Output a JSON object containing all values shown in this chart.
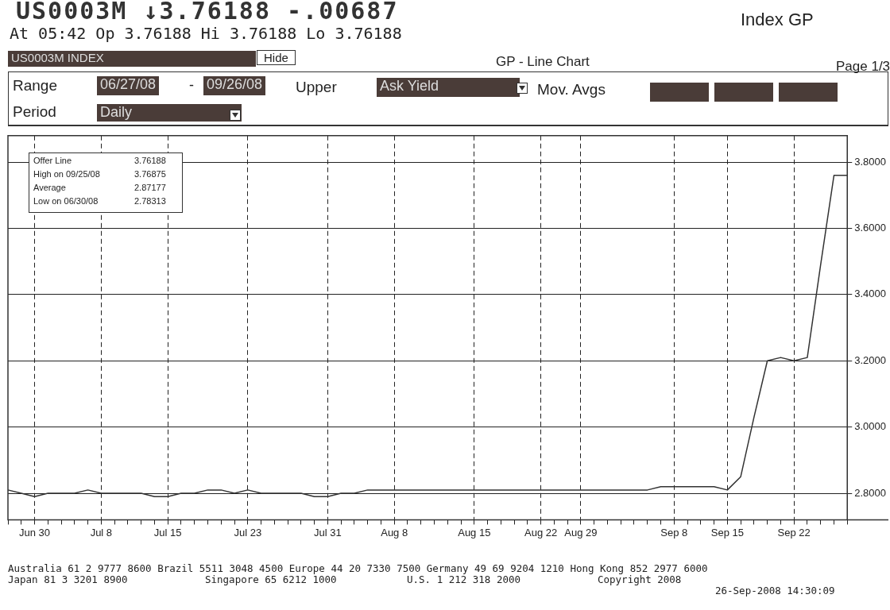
{
  "chart_data": {
    "type": "line",
    "title": "US0003M ↓3.76188 -.00687",
    "subtitle": "At 05:42 Op 3.76188 Hi 3.76188 Lo 3.76188",
    "annotations": [
      "Index GP",
      "US0003M INDEX",
      "Hide",
      "GP - Line Chart",
      "Page 1/3",
      "Range",
      "06/27/08",
      "-",
      "09/26/08",
      "Upper",
      "Ask Yield",
      "Mov. Avgs",
      "Period",
      "Daily",
      "Offer Line",
      "3.76188",
      "High on 09/25/08",
      "3.76875",
      "Average",
      "2.87177",
      "Low on 06/30/08",
      "2.78313",
      "Australia 61 2 9777 8600 Brazil 5511 3048 4500 Europe 44 20 7330 7500 Germany 49 69 9204 1210 Hong Kong 852 2977 6000",
      "Japan 81 3 3201 8900",
      "Singapore 65 6212 1000",
      "U.S. 1 212 318 2000",
      "Copyright 2008",
      "26-Sep-2008 14:30:09"
    ],
    "categories": [
      null,
      null,
      "Jun 30",
      null,
      null,
      null,
      null,
      "Jul 8",
      null,
      null,
      null,
      null,
      "Jul 15",
      null,
      null,
      null,
      null,
      null,
      "Jul 23",
      null,
      null,
      null,
      null,
      null,
      "Jul 31",
      null,
      null,
      null,
      null,
      "Aug 8",
      null,
      null,
      null,
      null,
      null,
      "Aug 15",
      null,
      null,
      null,
      null,
      "Aug 22",
      null,
      null,
      "Aug 29",
      null,
      null,
      null,
      null,
      null,
      null,
      "Sep 8",
      null,
      null,
      null,
      "Sep 15",
      null,
      null,
      null,
      null,
      "Sep 22",
      null,
      null,
      null,
      null
    ],
    "series": [
      {
        "color": "#333333",
        "values": [
          2.81,
          2.8,
          2.79,
          2.8,
          2.8,
          2.8,
          2.81,
          2.8,
          2.8,
          2.8,
          2.8,
          2.79,
          2.79,
          2.8,
          2.8,
          2.81,
          2.81,
          2.8,
          2.81,
          2.8,
          2.8,
          2.8,
          2.8,
          2.79,
          2.79,
          2.8,
          2.8,
          2.81,
          2.81,
          2.81,
          2.81,
          2.81,
          2.81,
          2.81,
          2.81,
          2.81,
          2.81,
          2.81,
          2.81,
          2.81,
          2.81,
          2.81,
          2.81,
          2.81,
          2.81,
          2.81,
          2.81,
          2.81,
          2.81,
          2.82,
          2.82,
          2.82,
          2.82,
          2.82,
          2.81,
          2.85,
          3.03,
          3.2,
          3.21,
          3.2,
          3.21,
          3.49,
          3.76,
          3.76
        ]
      }
    ],
    "ylim": [
      2.72,
      3.88
    ],
    "yticks": [
      {
        "value": 2.8,
        "label": "2.8000"
      },
      {
        "value": 3.0,
        "label": "3.0000"
      },
      {
        "value": 3.2,
        "label": "3.2000"
      },
      {
        "value": 3.4,
        "label": "3.4000"
      },
      {
        "value": 3.6,
        "label": "3.6000"
      },
      {
        "value": 3.8,
        "label": "3.8000"
      }
    ],
    "grid": true,
    "line_style": "solid",
    "marker": "none"
  }
}
